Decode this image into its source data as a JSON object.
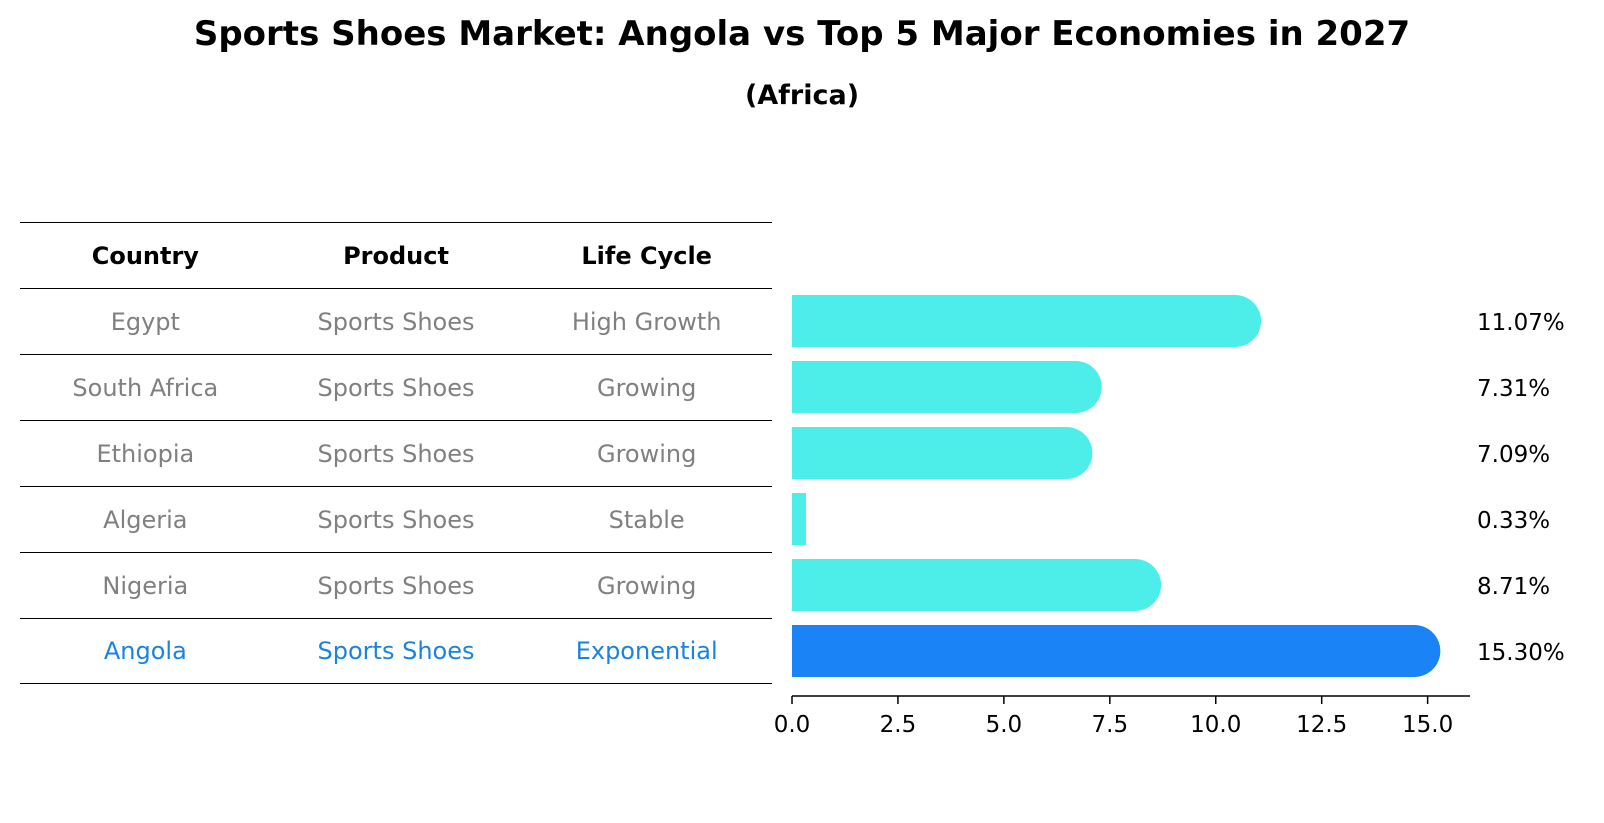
{
  "title": "Sports Shoes Market: Angola vs Top 5 Major Economies in 2027",
  "subtitle": "(Africa)",
  "table": {
    "headers": [
      "Country",
      "Product",
      "Life Cycle"
    ],
    "rows": [
      {
        "country": "Egypt",
        "product": "Sports Shoes",
        "life_cycle": "High Growth"
      },
      {
        "country": "South Africa",
        "product": "Sports Shoes",
        "life_cycle": "Growing"
      },
      {
        "country": "Ethiopia",
        "product": "Sports Shoes",
        "life_cycle": "Growing"
      },
      {
        "country": "Algeria",
        "product": "Sports Shoes",
        "life_cycle": "Stable"
      },
      {
        "country": "Nigeria",
        "product": "Sports Shoes",
        "life_cycle": "Growing"
      },
      {
        "country": "Angola",
        "product": "Sports Shoes",
        "life_cycle": "Exponential"
      }
    ]
  },
  "chart_data": {
    "type": "bar",
    "orientation": "horizontal",
    "categories": [
      "Egypt",
      "South Africa",
      "Ethiopia",
      "Algeria",
      "Nigeria",
      "Angola"
    ],
    "values": [
      11.07,
      7.31,
      7.09,
      0.33,
      8.71,
      15.3
    ],
    "value_labels": [
      "11.07%",
      "7.31%",
      "7.09%",
      "0.33%",
      "8.71%",
      "15.30%"
    ],
    "highlight": "Angola",
    "xlim": [
      0,
      16
    ],
    "xticks": [
      "0.0",
      "2.5",
      "5.0",
      "7.5",
      "10.0",
      "12.5",
      "15.0"
    ],
    "grid": false
  },
  "colors": {
    "bar": "#4deeea",
    "highlight": "#1a83f5",
    "muted_text": "#808080",
    "highlight_text": "#1a83e0"
  }
}
